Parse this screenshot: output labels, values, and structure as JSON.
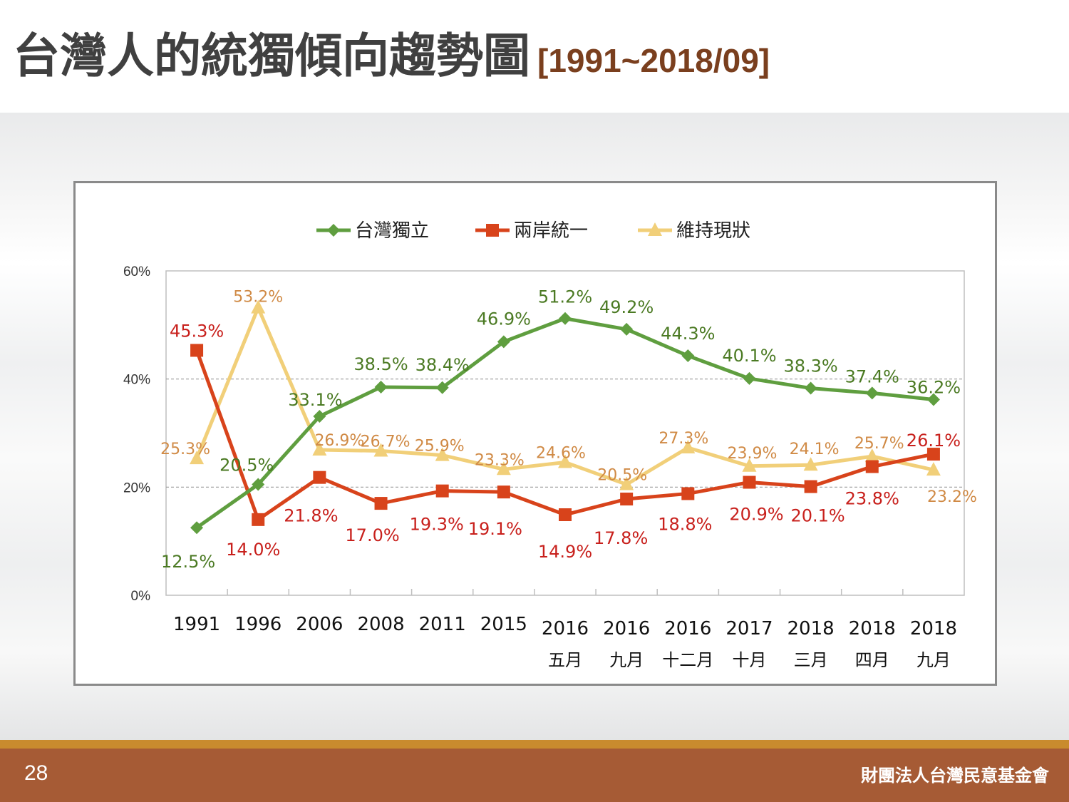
{
  "slide": {
    "title": "台灣人的統獨傾向趨勢圖",
    "title_range": "[1991~2018/09]",
    "page_number": "28",
    "organization": "財團法人台灣民意基金會"
  },
  "chart_data": {
    "type": "line",
    "categories": [
      [
        "1991"
      ],
      [
        "1996"
      ],
      [
        "2006"
      ],
      [
        "2008"
      ],
      [
        "2011"
      ],
      [
        "2015"
      ],
      [
        "2016",
        "五月"
      ],
      [
        "2016",
        "九月"
      ],
      [
        "2016",
        "十二月"
      ],
      [
        "2017",
        "十月"
      ],
      [
        "2018",
        "三月"
      ],
      [
        "2018",
        "四月"
      ],
      [
        "2018",
        "九月"
      ]
    ],
    "series": [
      {
        "name": "台灣獨立",
        "color": "#5f9e3f",
        "label_color": "#4b7a23",
        "marker": "diamond",
        "values": [
          12.5,
          20.5,
          33.1,
          38.5,
          38.4,
          46.9,
          51.2,
          49.2,
          44.3,
          40.1,
          38.3,
          37.4,
          36.2
        ],
        "labels": [
          "12.5%",
          "20.5%",
          "33.1%",
          "38.5%",
          "38.4%",
          "46.9%",
          "51.2%",
          "49.2%",
          "44.3%",
          "40.1%",
          "38.3%",
          "37.4%",
          "36.2%"
        ]
      },
      {
        "name": "兩岸統一",
        "color": "#d8431b",
        "label_color": "#c8201c",
        "marker": "square",
        "values": [
          45.3,
          14.0,
          21.8,
          17.0,
          19.3,
          19.1,
          14.9,
          17.8,
          18.8,
          20.9,
          20.1,
          23.8,
          26.1
        ],
        "labels": [
          "45.3%",
          "14.0%",
          "21.8%",
          "17.0%",
          "19.3%",
          "19.1%",
          "14.9%",
          "17.8%",
          "18.8%",
          "20.9%",
          "20.1%",
          "23.8%",
          "26.1%"
        ]
      },
      {
        "name": "維持現狀",
        "color": "#f1cf79",
        "label_color": "#d08a45",
        "marker": "triangle",
        "values": [
          25.3,
          53.2,
          26.9,
          26.7,
          25.9,
          23.3,
          24.6,
          20.5,
          27.3,
          23.9,
          24.1,
          25.7,
          23.2
        ],
        "labels": [
          "25.3%",
          "53.2%",
          "26.9%",
          "26.7%",
          "25.9%",
          "23.3%",
          "24.6%",
          "20.5%",
          "27.3%",
          "23.9%",
          "24.1%",
          "25.7%",
          "23.2%"
        ]
      }
    ],
    "y_ticks": [
      "0%",
      "20%",
      "40%",
      "60%"
    ],
    "ylim": [
      0,
      60
    ],
    "grid": "dashed at 20% and 40%",
    "legend": "top-center"
  }
}
